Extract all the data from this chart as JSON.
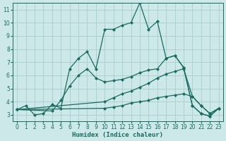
{
  "xlabel": "Humidex (Indice chaleur)",
  "background_color": "#cce8e8",
  "line_color": "#1a6b60",
  "grid_color": "#aacccc",
  "xlim": [
    -0.5,
    23.5
  ],
  "ylim": [
    2.5,
    11.5
  ],
  "yticks": [
    3,
    4,
    5,
    6,
    7,
    8,
    9,
    10,
    11
  ],
  "xticks": [
    0,
    1,
    2,
    3,
    4,
    5,
    6,
    7,
    8,
    9,
    10,
    11,
    12,
    13,
    14,
    15,
    16,
    17,
    18,
    19,
    20,
    21,
    22,
    23
  ],
  "lines": [
    {
      "x": [
        0,
        1,
        2,
        3,
        4,
        5,
        6,
        7,
        8,
        9,
        10,
        11,
        12,
        13,
        14,
        15,
        16,
        17,
        18,
        19,
        20,
        21,
        22,
        23
      ],
      "y": [
        3.4,
        3.7,
        3.0,
        3.1,
        3.8,
        3.5,
        6.5,
        7.3,
        7.8,
        6.5,
        9.5,
        9.5,
        9.8,
        10.0,
        11.5,
        9.5,
        10.1,
        7.3,
        7.5,
        6.6,
        3.7,
        3.1,
        2.9,
        3.5
      ]
    },
    {
      "x": [
        0,
        4,
        5,
        6,
        7,
        8,
        9,
        10,
        11,
        12,
        13,
        14,
        15,
        16,
        17,
        18,
        19,
        20,
        21,
        22,
        23
      ],
      "y": [
        3.4,
        3.3,
        4.1,
        5.2,
        6.0,
        6.5,
        5.8,
        5.5,
        5.6,
        5.7,
        5.9,
        6.2,
        6.4,
        6.5,
        7.3,
        7.5,
        6.6,
        3.7,
        3.1,
        2.9,
        3.5
      ]
    },
    {
      "x": [
        0,
        10,
        11,
        12,
        13,
        14,
        15,
        16,
        17,
        18,
        19,
        20,
        21,
        22,
        23
      ],
      "y": [
        3.4,
        4.0,
        4.3,
        4.6,
        4.8,
        5.1,
        5.4,
        5.8,
        6.1,
        6.3,
        6.5,
        4.4,
        3.7,
        3.1,
        3.5
      ]
    },
    {
      "x": [
        0,
        10,
        11,
        12,
        13,
        14,
        15,
        16,
        17,
        18,
        19,
        20,
        21,
        22,
        23
      ],
      "y": [
        3.4,
        3.5,
        3.6,
        3.7,
        3.9,
        4.0,
        4.1,
        4.3,
        4.4,
        4.5,
        4.6,
        4.4,
        3.7,
        3.1,
        3.5
      ]
    }
  ],
  "marker": "D",
  "markersize": 2.0,
  "linewidth": 0.9
}
